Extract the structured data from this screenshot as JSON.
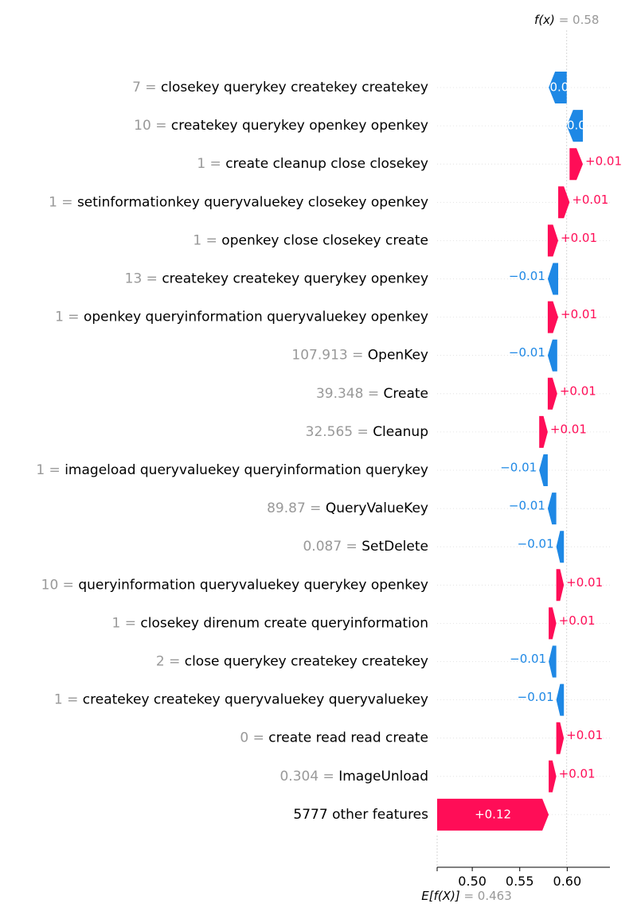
{
  "chart_data": {
    "type": "waterfall",
    "fx_label": "f(x)",
    "fx_value": "0.58",
    "base_label": "E[f(X)]",
    "base_value_text": "0.463",
    "x_ticks": [
      "0.50",
      "0.55",
      "0.60"
    ],
    "x_tick_values": [
      0.5,
      0.55,
      0.6
    ],
    "xlim": [
      0.463,
      0.645
    ],
    "colors": {
      "positive": "#ff0d57",
      "negative": "#1e88e5",
      "grey": "#999999"
    },
    "features": [
      {
        "value": "7",
        "name": "closekey querykey createkey createkey",
        "start": 0.5995,
        "end": 0.5805,
        "label": "0.0",
        "label_inside": true
      },
      {
        "value": "10",
        "name": "createkey querykey openkey openkey",
        "start": 0.6165,
        "end": 0.5995,
        "label": "0.0",
        "label_inside": true
      },
      {
        "value": "1",
        "name": "create cleanup close closekey",
        "start": 0.6025,
        "end": 0.6165,
        "label": "+0.01",
        "label_inside": false
      },
      {
        "value": "1",
        "name": "setinformationkey queryvaluekey closekey openkey",
        "start": 0.5905,
        "end": 0.6025,
        "label": "+0.01",
        "label_inside": false
      },
      {
        "value": "1",
        "name": "openkey close closekey create",
        "start": 0.5795,
        "end": 0.5905,
        "label": "+0.01",
        "label_inside": false
      },
      {
        "value": "13",
        "name": "createkey createkey querykey openkey",
        "start": 0.5905,
        "end": 0.5795,
        "label": "−0.01",
        "label_inside": false
      },
      {
        "value": "1",
        "name": "openkey queryinformation queryvaluekey openkey",
        "start": 0.5795,
        "end": 0.5905,
        "label": "+0.01",
        "label_inside": false
      },
      {
        "value": "107.913",
        "name": "OpenKey",
        "start": 0.5895,
        "end": 0.5795,
        "label": "−0.01",
        "label_inside": false
      },
      {
        "value": "39.348",
        "name": "Create",
        "start": 0.5795,
        "end": 0.5895,
        "label": "+0.01",
        "label_inside": false
      },
      {
        "value": "32.565",
        "name": "Cleanup",
        "start": 0.5705,
        "end": 0.5795,
        "label": "+0.01",
        "label_inside": false
      },
      {
        "value": "1",
        "name": "imageload queryvaluekey queryinformation querykey",
        "start": 0.5795,
        "end": 0.5705,
        "label": "−0.01",
        "label_inside": false
      },
      {
        "value": "89.87",
        "name": "QueryValueKey",
        "start": 0.5885,
        "end": 0.5795,
        "label": "−0.01",
        "label_inside": false
      },
      {
        "value": "0.087",
        "name": "SetDelete",
        "start": 0.5965,
        "end": 0.5885,
        "label": "−0.01",
        "label_inside": false
      },
      {
        "value": "10",
        "name": "queryinformation queryvaluekey querykey openkey",
        "start": 0.5885,
        "end": 0.5965,
        "label": "+0.01",
        "label_inside": false
      },
      {
        "value": "1",
        "name": "closekey direnum create queryinformation",
        "start": 0.5805,
        "end": 0.5885,
        "label": "+0.01",
        "label_inside": false
      },
      {
        "value": "2",
        "name": "close querykey createkey createkey",
        "start": 0.5885,
        "end": 0.5805,
        "label": "−0.01",
        "label_inside": false
      },
      {
        "value": "1",
        "name": "createkey createkey queryvaluekey queryvaluekey",
        "start": 0.5965,
        "end": 0.5885,
        "label": "−0.01",
        "label_inside": false
      },
      {
        "value": "0",
        "name": "create read read create",
        "start": 0.5885,
        "end": 0.5965,
        "label": "+0.01",
        "label_inside": false
      },
      {
        "value": "0.304",
        "name": "ImageUnload",
        "start": 0.5805,
        "end": 0.5885,
        "label": "+0.01",
        "label_inside": false
      },
      {
        "value": "",
        "name": "5777 other features",
        "start": 0.463,
        "end": 0.5805,
        "label": "+0.12",
        "label_inside": true
      }
    ]
  }
}
